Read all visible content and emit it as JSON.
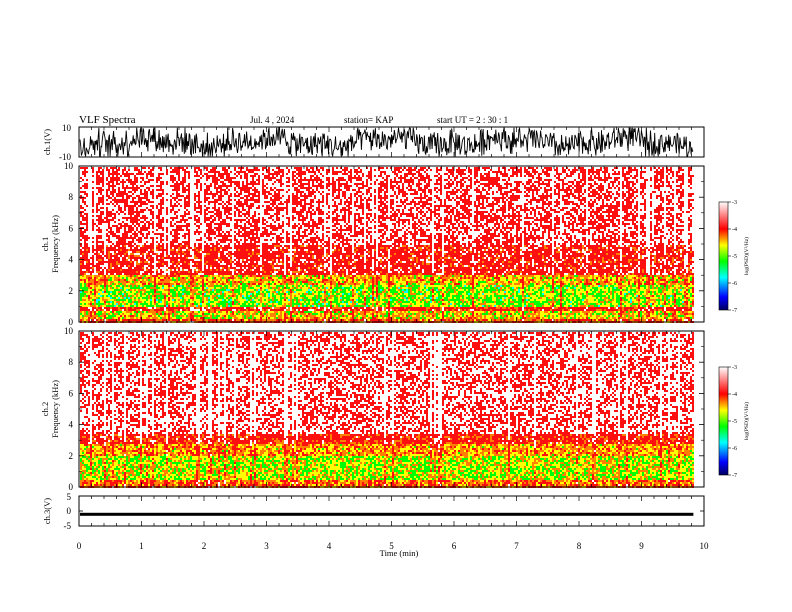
{
  "header": {
    "title": "VLF Spectra",
    "date": "Jul. 4 , 2024",
    "station": "station= KAP",
    "start_ut": "start UT =  2 : 30 : 1"
  },
  "chart_data": [
    {
      "type": "line",
      "name": "ch1-waveform",
      "ylabel": "ch.1(V)",
      "ylim": [
        -10,
        10
      ],
      "yticks": [
        "10",
        "-10"
      ],
      "xlim": [
        0,
        10
      ],
      "x_end": 9.83,
      "description_of_signal": "noisy waveform mostly between -10 and 10 V"
    },
    {
      "type": "heatmap",
      "name": "ch1-spectrogram",
      "ylabel": "ch.1\nFrequency (kHz)",
      "ylabel_lines": [
        "ch.1",
        "Frequency (kHz)"
      ],
      "ylim": [
        0,
        10
      ],
      "yticks": [
        "0",
        "2",
        "4",
        "6",
        "8",
        "10"
      ],
      "xlim": [
        0,
        10
      ],
      "x_end": 9.83,
      "bands": [
        {
          "fmin": 0.0,
          "fmax": 0.3,
          "level": -4.1
        },
        {
          "fmin": 0.3,
          "fmax": 0.8,
          "level": -4.6
        },
        {
          "fmin": 0.8,
          "fmax": 1.0,
          "level": -3.8
        },
        {
          "fmin": 1.0,
          "fmax": 2.5,
          "level": -4.9
        },
        {
          "fmin": 2.5,
          "fmax": 3.1,
          "level": -4.5
        },
        {
          "fmin": 3.1,
          "fmax": 5.0,
          "level": -3.7
        },
        {
          "fmin": 5.0,
          "fmax": 10.0,
          "level": -3.4
        }
      ]
    },
    {
      "type": "heatmap",
      "name": "ch2-spectrogram",
      "ylabel": "ch.2\nFrequency (kHz)",
      "ylabel_lines": [
        "ch.2",
        "Frequency (kHz)"
      ],
      "ylim": [
        0,
        10
      ],
      "yticks": [
        "0",
        "2",
        "4",
        "6",
        "8",
        "10"
      ],
      "xlim": [
        0,
        10
      ],
      "x_end": 9.83,
      "bands": [
        {
          "fmin": 0.0,
          "fmax": 0.5,
          "level": -4.2
        },
        {
          "fmin": 0.5,
          "fmax": 2.0,
          "level": -4.8
        },
        {
          "fmin": 2.0,
          "fmax": 2.8,
          "level": -4.4
        },
        {
          "fmin": 2.8,
          "fmax": 3.4,
          "level": -3.8
        },
        {
          "fmin": 3.4,
          "fmax": 10.0,
          "level": -3.3
        }
      ]
    },
    {
      "type": "line",
      "name": "ch3-waveform",
      "ylabel": "ch.3(V)",
      "ylim": [
        -5,
        5
      ],
      "yticks": [
        "5",
        "0",
        "-5"
      ],
      "xlim": [
        0,
        10
      ],
      "x_end": 9.83,
      "description_of_signal": "flat thick trace near -1 V"
    }
  ],
  "x_axis": {
    "label": "Time (min)",
    "ticks": [
      "0",
      "1",
      "2",
      "3",
      "4",
      "5",
      "6",
      "7",
      "8",
      "9",
      "10"
    ]
  },
  "colorbar": {
    "label": "log(PSD)(V²/Hz)",
    "ticks": [
      "-3",
      "-4",
      "-5",
      "-6",
      "-7"
    ],
    "range": [
      -7,
      -3
    ],
    "colors": [
      "#000080",
      "#0000ff",
      "#00ffff",
      "#00ff00",
      "#ffff00",
      "#ff0000",
      "#ffffff"
    ]
  }
}
